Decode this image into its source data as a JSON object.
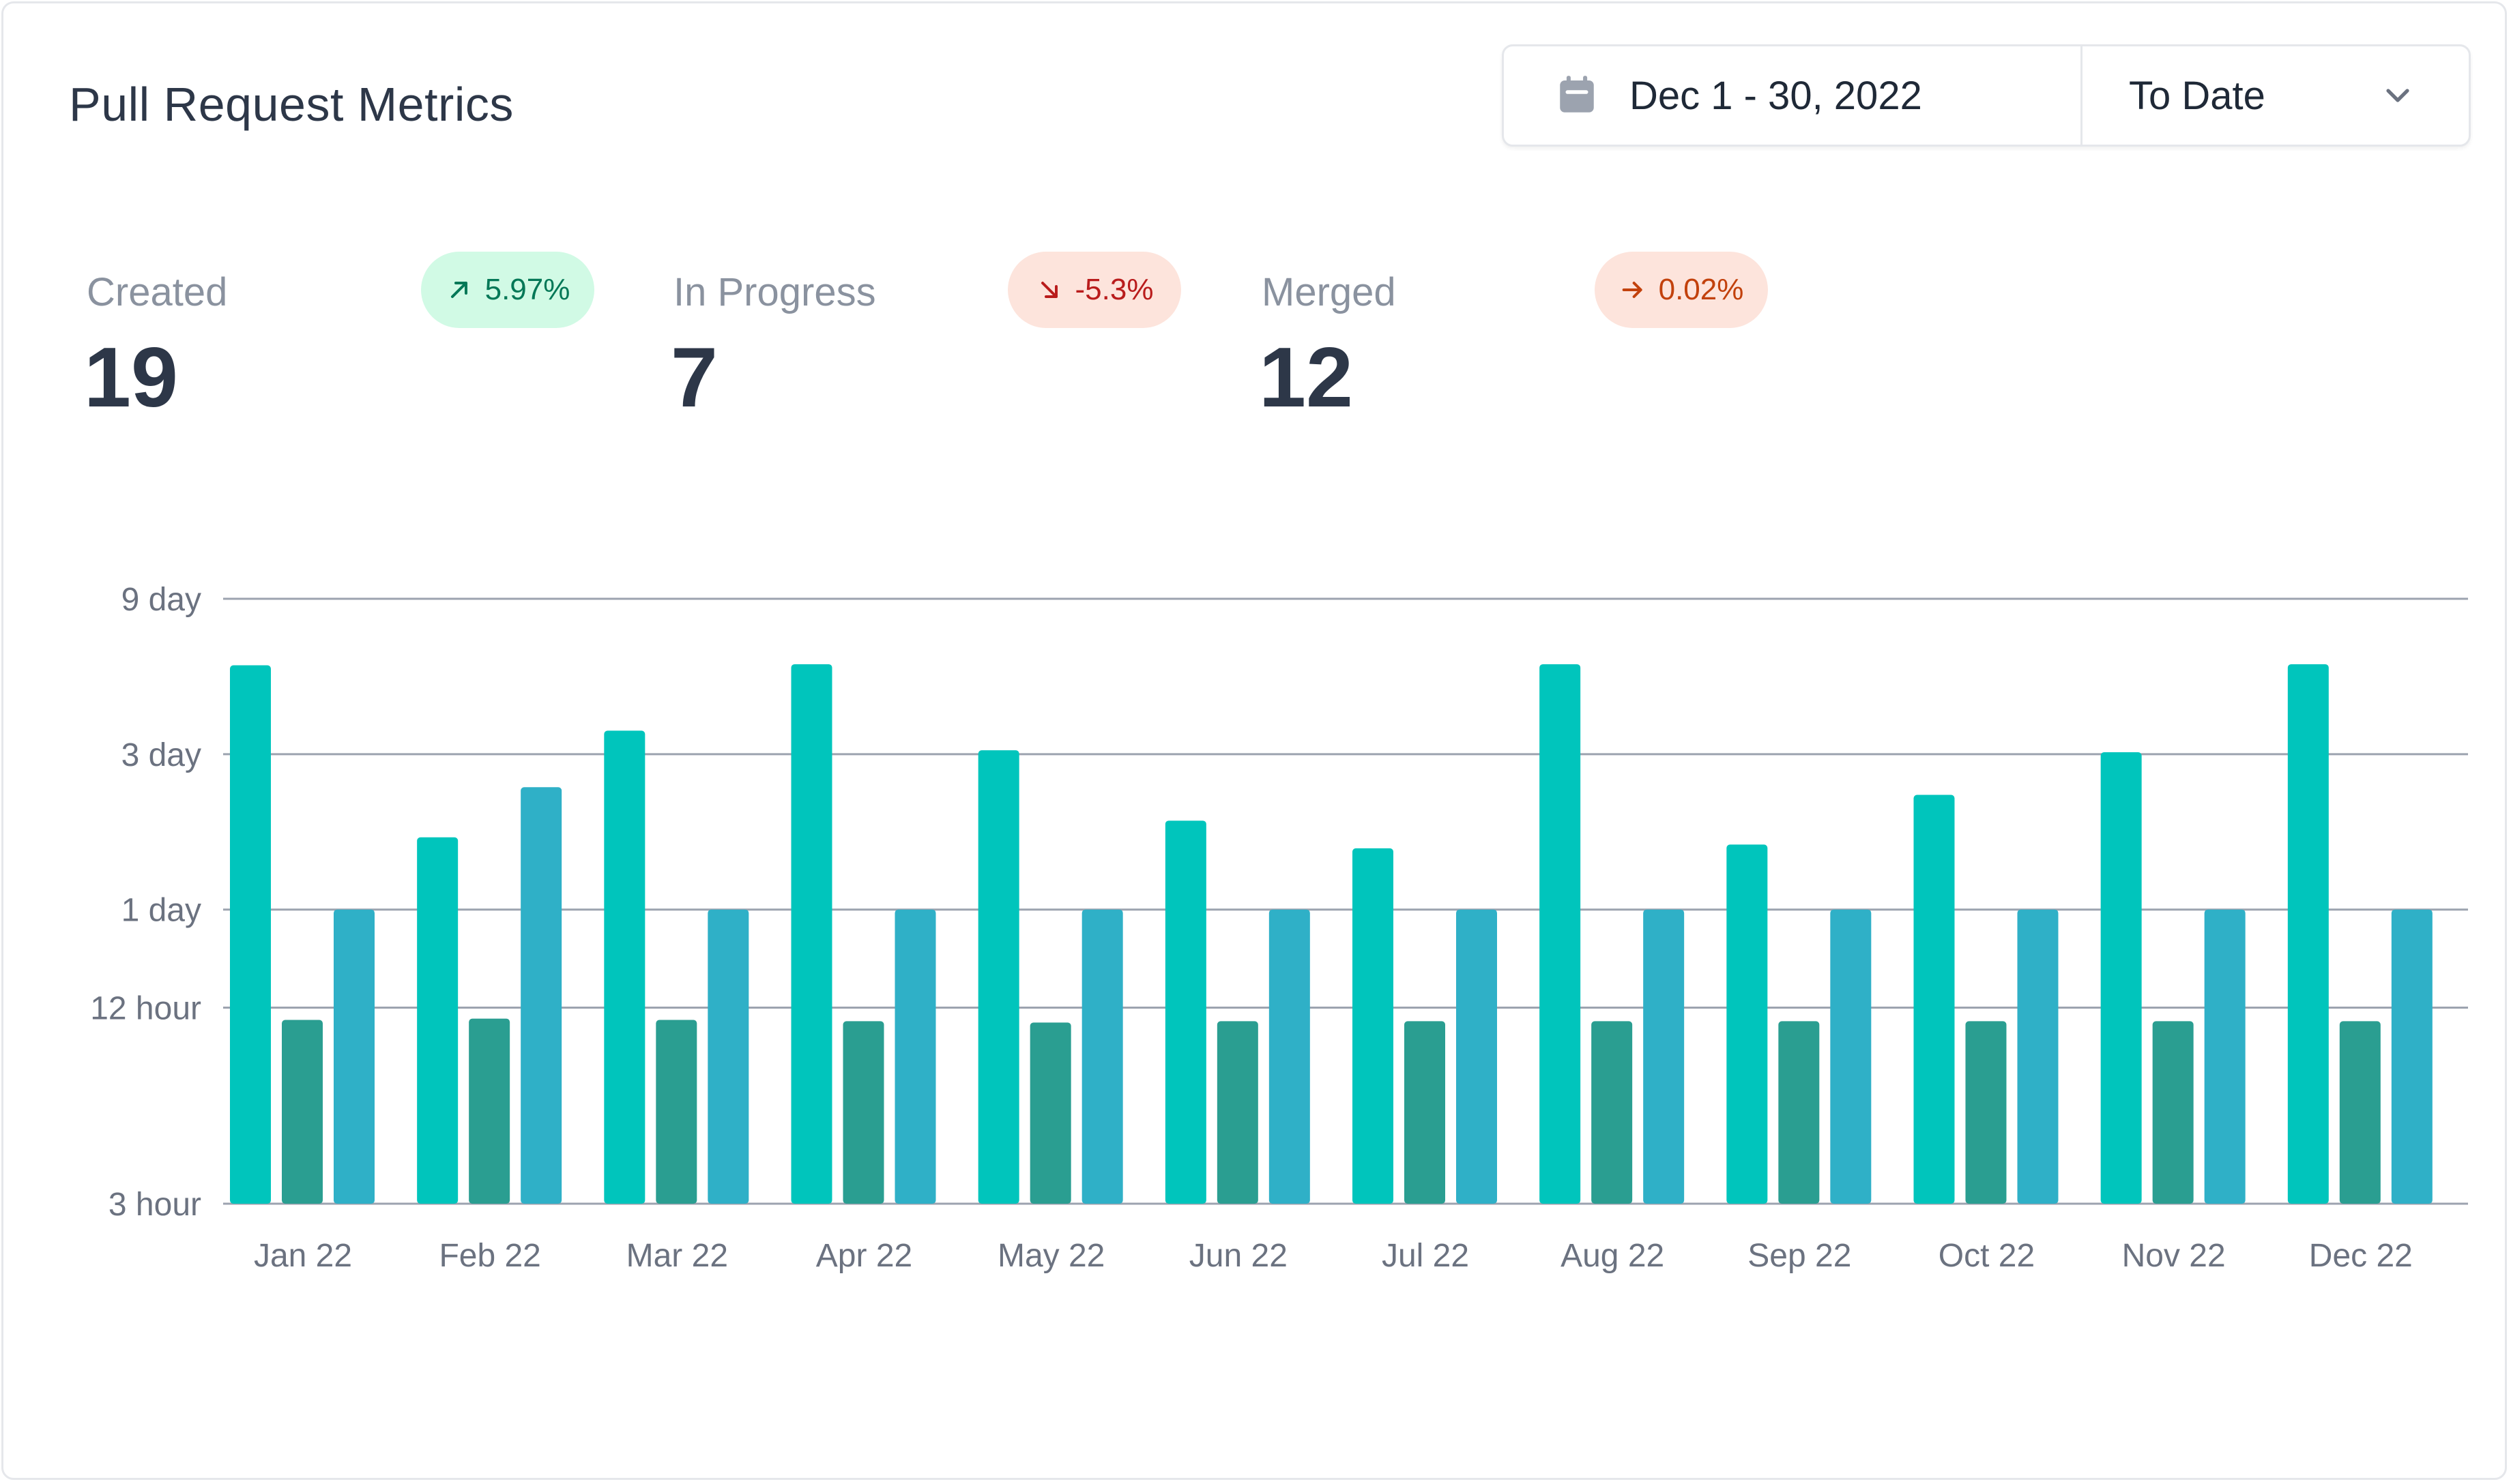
{
  "header": {
    "title": "Pull Request Metrics"
  },
  "date_range": {
    "icon": "calendar-icon",
    "dates": "Dec 1 - 30, 2022",
    "period": "To Date",
    "period_icon": "chevron-down-icon"
  },
  "stats": [
    {
      "label": "Created",
      "value": "19",
      "change": "5.97%",
      "trend": "up",
      "trend_icon": "arrow-up-right-icon",
      "color": "#047857",
      "bg": "#d1fae5"
    },
    {
      "label": "In Progress",
      "value": "7",
      "change": "-5.3%",
      "trend": "down",
      "trend_icon": "arrow-down-right-icon",
      "color": "#b91c1c",
      "bg": "#fde4dc"
    },
    {
      "label": "Merged",
      "value": "12",
      "change": "0.02%",
      "trend": "flat",
      "trend_icon": "arrow-right-icon",
      "color": "#c2410c",
      "bg": "#fde4dc"
    }
  ],
  "chart_data": {
    "type": "bar",
    "y_scale": "log",
    "y_unit": "hours",
    "y_ticks": [
      {
        "label": "9 day",
        "hours": 216
      },
      {
        "label": "3 day",
        "hours": 72
      },
      {
        "label": "1 day",
        "hours": 24
      },
      {
        "label": "12 hour",
        "hours": 12
      },
      {
        "label": "3 hour",
        "hours": 3
      }
    ],
    "grid": true,
    "categories": [
      "Jan 22",
      "Feb 22",
      "Mar 22",
      "Apr 22",
      "May 22",
      "Jun 22",
      "Jul 22",
      "Aug 22",
      "Sep 22",
      "Oct 22",
      "Nov 22",
      "Dec 22"
    ],
    "series": [
      {
        "color": "#00c5bc",
        "values": [
          135,
          40,
          85,
          136,
          74,
          45,
          37,
          136,
          38,
          54,
          73,
          136
        ]
      },
      {
        "color": "#2a9e91",
        "values": [
          11.0,
          11.1,
          11.0,
          10.9,
          10.8,
          10.9,
          10.9,
          10.9,
          10.9,
          10.9,
          10.9,
          10.9
        ]
      },
      {
        "color": "#2fb0c7",
        "values": [
          24,
          57,
          24,
          24,
          24,
          24,
          24,
          24,
          24,
          24,
          24,
          24
        ]
      }
    ]
  }
}
